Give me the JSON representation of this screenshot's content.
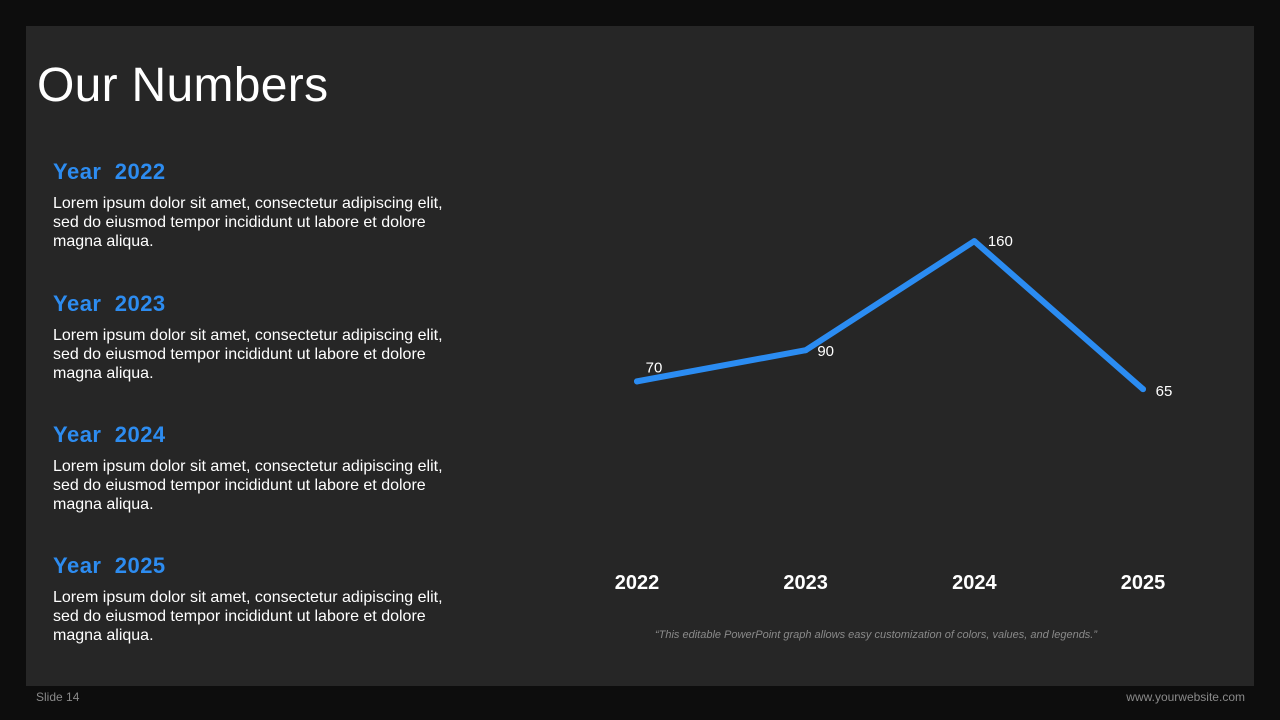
{
  "slide": {
    "title": "Our Numbers",
    "entries": [
      {
        "heading": "Year  2022",
        "body": "Lorem ipsum dolor sit amet, consectetur adipiscing elit, sed do eiusmod tempor incididunt ut labore et dolore magna aliqua."
      },
      {
        "heading": "Year  2023",
        "body": "Lorem ipsum dolor sit amet, consectetur adipiscing elit, sed do eiusmod tempor incididunt ut labore et dolore magna aliqua."
      },
      {
        "heading": "Year  2024",
        "body": "Lorem ipsum dolor sit amet, consectetur adipiscing elit, sed do eiusmod tempor incididunt ut labore et dolore magna aliqua."
      },
      {
        "heading": "Year  2025",
        "body": "Lorem ipsum dolor sit amet, consectetur adipiscing elit, sed do eiusmod tempor incididunt ut labore et dolore magna aliqua."
      }
    ],
    "footnote": "“This editable PowerPoint graph allows easy customization of colors, values, and legends.”",
    "slide_number": "Slide 14",
    "website": "www.yourwebsite.com"
  },
  "colors": {
    "accent": "#2d8cf0",
    "line": "#2b8cf2",
    "slide_bg": "#262626",
    "page_bg": "#0d0d0d"
  },
  "chart_data": {
    "type": "line",
    "categories": [
      "2022",
      "2023",
      "2024",
      "2025"
    ],
    "series": [
      {
        "values": [
          70,
          90,
          160,
          65
        ]
      }
    ],
    "data_labels": [
      "70",
      "90",
      "160",
      "65"
    ],
    "ylim": [
      -10,
      180
    ],
    "grid": false,
    "legend": "none"
  }
}
